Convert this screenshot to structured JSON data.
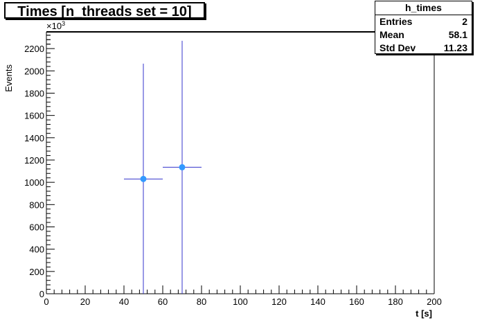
{
  "title": "Times [n_threads set = 10]",
  "stats": {
    "name": "h_times",
    "rows": [
      {
        "label": "Entries",
        "value": "2"
      },
      {
        "label": "Mean",
        "value": "58.1"
      },
      {
        "label": "Std Dev",
        "value": "11.23"
      }
    ]
  },
  "chart_data": {
    "type": "scatter",
    "title": "Times [n_threads set = 10]",
    "xlabel": "t [s]",
    "ylabel": "Events",
    "y_exponent_label": "×10",
    "y_exponent_power": "3",
    "xlim": [
      0,
      200
    ],
    "ylim": [
      0,
      2350
    ],
    "x_ticks": [
      0,
      20,
      40,
      60,
      80,
      100,
      120,
      140,
      160,
      180,
      200
    ],
    "y_ticks": [
      0,
      200,
      400,
      600,
      800,
      1000,
      1200,
      1400,
      1600,
      1800,
      2000,
      2200
    ],
    "grid": false,
    "legend": "none",
    "series": [
      {
        "points": [
          {
            "x": 50,
            "y": 1030,
            "xerr": [
              40,
              60
            ],
            "yerr": [
              0,
              2065
            ]
          },
          {
            "x": 70,
            "y": 1135,
            "xerr": [
              60,
              80
            ],
            "yerr": [
              0,
              2270
            ]
          }
        ]
      }
    ],
    "colors": {
      "marker": "#3399ff",
      "errorbar": "#3333cc",
      "axis": "#000000"
    }
  }
}
